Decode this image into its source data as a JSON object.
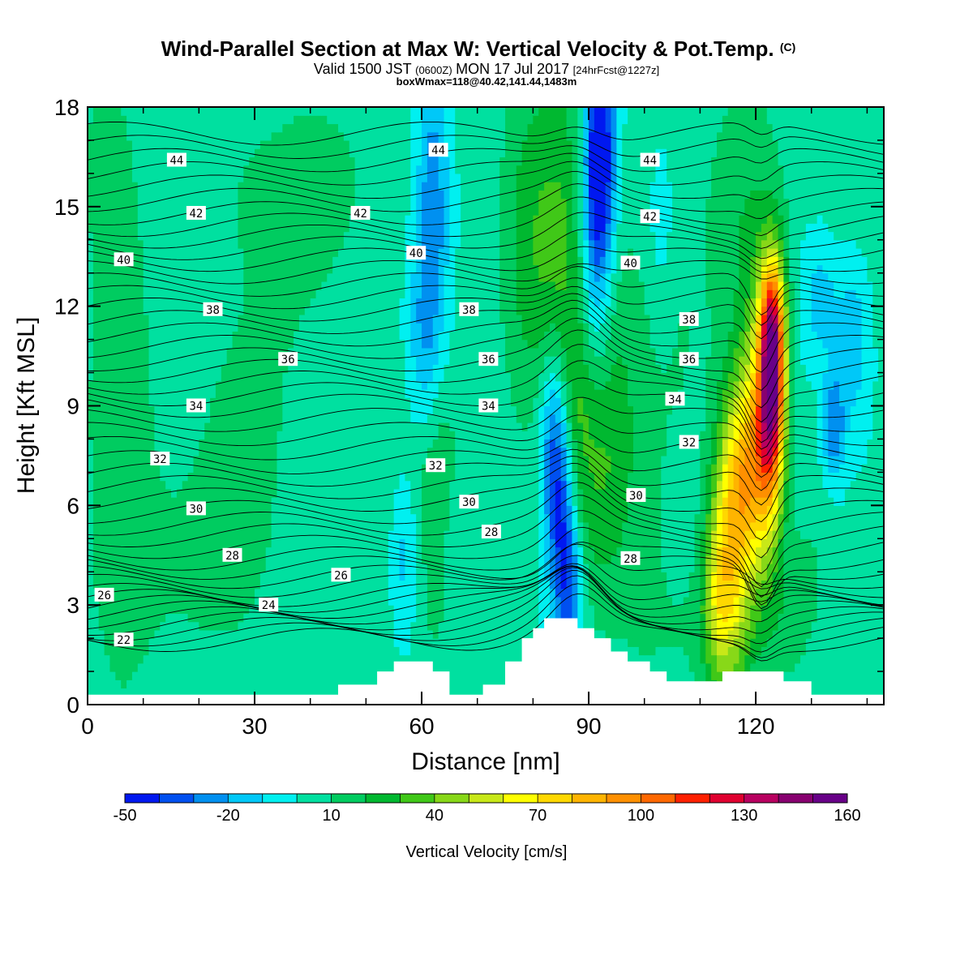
{
  "header": {
    "title_main": "Wind-Parallel Section at Max W: Vertical Velocity & Pot.Temp.",
    "title_copy": "(C)",
    "valid_prefix": "Valid 1500 JST",
    "valid_utc": "(0600Z)",
    "valid_date": "MON 17 Jul 2017",
    "valid_fcst": "[24hrFcst@1227z]",
    "boxline": "boxWmax=118@40.42,141.44,1483m"
  },
  "colors": {
    "bands": [
      "#0018f0",
      "#0050f0",
      "#0090f0",
      "#00c8f8",
      "#00f0f0",
      "#00e0a0",
      "#00cc60",
      "#00b830",
      "#40c818",
      "#88d818",
      "#c8e818",
      "#ffff00",
      "#ffd800",
      "#ffb400",
      "#ff9000",
      "#ff6800",
      "#ff2000",
      "#e00030",
      "#b80060",
      "#880070",
      "#680088"
    ],
    "terrain": "#ffffff",
    "contour": "#000000"
  },
  "chart_data": {
    "type": "heatmap",
    "xlabel": "Distance [nm]",
    "ylabel": "Height [Kft MSL]",
    "xlim": [
      0,
      143
    ],
    "ylim": [
      0,
      18
    ],
    "xticks": [
      "0",
      "30",
      "60",
      "90",
      "120"
    ],
    "yticks": [
      "0",
      "3",
      "6",
      "9",
      "12",
      "15",
      "18"
    ],
    "field": "Vertical Velocity",
    "colorbar": {
      "title": "Vertical Velocity [cm/s]",
      "ticks": [
        "-50",
        "-20",
        "10",
        "40",
        "70",
        "100",
        "130",
        "160"
      ],
      "tick_values": [
        -50,
        -20,
        10,
        40,
        70,
        100,
        130,
        160
      ],
      "min": -50,
      "max": 180,
      "step": 10
    },
    "features": [
      {
        "kind": "downdraft",
        "x": 85,
        "y": 5.5,
        "w_cms": -30
      },
      {
        "kind": "downdraft",
        "x": 92,
        "y": 16.5,
        "w_cms": -40
      },
      {
        "kind": "updraft",
        "x": 123,
        "y": 9,
        "w_cms": 170
      },
      {
        "kind": "updraft",
        "x": 114,
        "y": 4,
        "w_cms": 80
      }
    ],
    "terrain_kft": [
      [
        0,
        0.3
      ],
      [
        45,
        0.3
      ],
      [
        45,
        0.6
      ],
      [
        47,
        0.6
      ],
      [
        47,
        0.6
      ],
      [
        52,
        0.6
      ],
      [
        52,
        1.0
      ],
      [
        55,
        1.0
      ],
      [
        55,
        1.3
      ],
      [
        62,
        1.3
      ],
      [
        62,
        1.0
      ],
      [
        65,
        1.0
      ],
      [
        65,
        0.3
      ],
      [
        71,
        0.3
      ],
      [
        71,
        0.6
      ],
      [
        75,
        0.6
      ],
      [
        75,
        1.3
      ],
      [
        78,
        1.3
      ],
      [
        78,
        2.0
      ],
      [
        80,
        2.0
      ],
      [
        80,
        2.3
      ],
      [
        82,
        2.3
      ],
      [
        82,
        2.6
      ],
      [
        88,
        2.6
      ],
      [
        88,
        2.3
      ],
      [
        91,
        2.3
      ],
      [
        91,
        2.0
      ],
      [
        94,
        2.0
      ],
      [
        94,
        1.6
      ],
      [
        97,
        1.6
      ],
      [
        97,
        1.3
      ],
      [
        101,
        1.3
      ],
      [
        101,
        1.0
      ],
      [
        104,
        1.0
      ],
      [
        104,
        0.7
      ],
      [
        114,
        0.7
      ],
      [
        114,
        1.0
      ],
      [
        125,
        1.0
      ],
      [
        125,
        0.7
      ],
      [
        130,
        0.7
      ],
      [
        130,
        0.3
      ],
      [
        143,
        0.3
      ]
    ],
    "theta_contour_labels": [
      {
        "label": "22",
        "x": 6.5,
        "y": 1.95
      },
      {
        "label": "24",
        "x": 32.5,
        "y": 3.0
      },
      {
        "label": "26",
        "x": 3.0,
        "y": 3.3
      },
      {
        "label": "26",
        "x": 45.5,
        "y": 3.9
      },
      {
        "label": "28",
        "x": 26.0,
        "y": 4.5
      },
      {
        "label": "28",
        "x": 72.5,
        "y": 5.2
      },
      {
        "label": "28",
        "x": 97.5,
        "y": 4.4
      },
      {
        "label": "30",
        "x": 19.5,
        "y": 5.9
      },
      {
        "label": "30",
        "x": 68.5,
        "y": 6.1
      },
      {
        "label": "30",
        "x": 98.5,
        "y": 6.3
      },
      {
        "label": "32",
        "x": 13.0,
        "y": 7.4
      },
      {
        "label": "32",
        "x": 62.5,
        "y": 7.2
      },
      {
        "label": "32",
        "x": 108.0,
        "y": 7.9
      },
      {
        "label": "34",
        "x": 19.5,
        "y": 9.0
      },
      {
        "label": "34",
        "x": 72.0,
        "y": 9.0
      },
      {
        "label": "34",
        "x": 105.5,
        "y": 9.2
      },
      {
        "label": "36",
        "x": 36.0,
        "y": 10.4
      },
      {
        "label": "36",
        "x": 72.0,
        "y": 10.4
      },
      {
        "label": "36",
        "x": 108.0,
        "y": 10.4
      },
      {
        "label": "38",
        "x": 22.5,
        "y": 11.9
      },
      {
        "label": "38",
        "x": 68.5,
        "y": 11.9
      },
      {
        "label": "38",
        "x": 108.0,
        "y": 11.6
      },
      {
        "label": "40",
        "x": 6.5,
        "y": 13.4
      },
      {
        "label": "40",
        "x": 59.0,
        "y": 13.6
      },
      {
        "label": "40",
        "x": 97.5,
        "y": 13.3
      },
      {
        "label": "42",
        "x": 19.5,
        "y": 14.8
      },
      {
        "label": "42",
        "x": 49.0,
        "y": 14.8
      },
      {
        "label": "42",
        "x": 101.0,
        "y": 14.7
      },
      {
        "label": "44",
        "x": 16.0,
        "y": 16.4
      },
      {
        "label": "44",
        "x": 63.0,
        "y": 16.7
      },
      {
        "label": "44",
        "x": 101.0,
        "y": 16.4
      }
    ]
  }
}
